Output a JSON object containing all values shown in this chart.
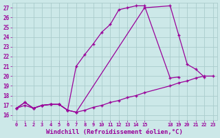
{
  "background_color": "#cce8e8",
  "grid_color": "#aacccc",
  "line_color": "#990099",
  "marker_color": "#990099",
  "xlabel": "Windchill (Refroidissement éolien,°C)",
  "xlabel_fontsize": 6.5,
  "ylabel_values": [
    16,
    17,
    18,
    19,
    20,
    21,
    22,
    23,
    24,
    25,
    26,
    27
  ],
  "xlabel_ticks": [
    0,
    1,
    2,
    3,
    4,
    5,
    6,
    7,
    8,
    9,
    10,
    11,
    12,
    13,
    14,
    15,
    18,
    19,
    20,
    21,
    22,
    23
  ],
  "xlim": [
    -0.5,
    23.5
  ],
  "ylim": [
    15.5,
    27.5
  ],
  "series": [
    {
      "x": [
        0,
        1,
        2,
        3,
        4,
        5,
        6,
        7,
        8,
        9,
        10,
        11,
        12,
        13,
        14,
        15,
        18,
        19
      ],
      "y": [
        16.7,
        17.3,
        16.7,
        17.0,
        17.1,
        17.1,
        16.5,
        21.0,
        22.2,
        23.3,
        24.5,
        25.3,
        26.8,
        27.0,
        27.2,
        27.2,
        19.8,
        19.9
      ]
    },
    {
      "x": [
        0,
        1,
        2,
        3,
        4,
        5,
        6,
        7,
        15,
        18,
        19,
        20,
        21,
        22
      ],
      "y": [
        16.7,
        17.3,
        16.7,
        17.0,
        17.1,
        17.1,
        16.5,
        16.3,
        27.0,
        27.2,
        24.2,
        21.2,
        20.7,
        19.9
      ]
    },
    {
      "x": [
        0,
        1,
        2,
        3,
        4,
        5,
        6,
        7,
        8,
        9,
        10,
        11,
        12,
        13,
        14,
        15,
        18,
        19,
        20,
        21,
        22,
        23
      ],
      "y": [
        16.7,
        17.0,
        16.7,
        17.0,
        17.1,
        17.1,
        16.5,
        16.3,
        16.5,
        16.8,
        17.0,
        17.3,
        17.5,
        17.8,
        18.0,
        18.3,
        19.0,
        19.3,
        19.5,
        19.8,
        20.0,
        20.0
      ]
    }
  ]
}
